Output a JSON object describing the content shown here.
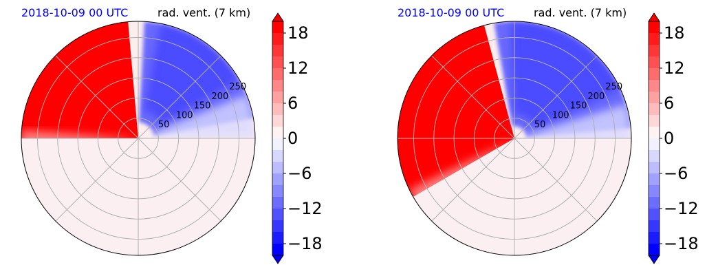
{
  "chart_data": [
    {
      "type": "heatmap",
      "projection": "polar",
      "date": "2018-10-09 00 UTC",
      "title": "rad. vent. (7 km)",
      "range_ticks": [
        50,
        100,
        150,
        200,
        250
      ],
      "range_max": 290,
      "colorbar": {
        "ticks": [
          "18",
          "12",
          "6",
          "0",
          "−6",
          "−12",
          "−18"
        ],
        "tick_values": [
          18,
          12,
          6,
          0,
          -6,
          -12,
          -18
        ],
        "vmin": -20,
        "vmax": 20,
        "extend": "both"
      },
      "field_regions": [
        {
          "sign": "positive",
          "azimuth_deg_range": [
            -90,
            -5
          ],
          "range_km": [
            0,
            290
          ],
          "value": 20
        },
        {
          "sign": "negative",
          "azimuth_deg_range": [
            3,
            80
          ],
          "range_km": [
            40,
            290
          ],
          "value": -8
        },
        {
          "sign": "near_zero",
          "azimuth_deg_range": [
            90,
            270
          ],
          "range_km": [
            0,
            290
          ],
          "value": 1
        }
      ]
    },
    {
      "type": "heatmap",
      "projection": "polar",
      "date": "2018-10-09 00 UTC",
      "title": "rad. vent. (7 km)",
      "range_ticks": [
        50,
        100,
        150,
        200,
        250
      ],
      "range_max": 290,
      "colorbar": {
        "ticks": [
          "18",
          "12",
          "6",
          "0",
          "−6",
          "−12",
          "−18"
        ],
        "tick_values": [
          18,
          12,
          6,
          0,
          -6,
          -12,
          -18
        ],
        "vmin": -20,
        "vmax": 20,
        "extend": "both"
      },
      "field_regions": [
        {
          "sign": "positive",
          "azimuth_deg_range": [
            -120,
            -15
          ],
          "range_km": [
            0,
            290
          ],
          "value": 20
        },
        {
          "sign": "negative",
          "azimuth_deg_range": [
            -10,
            85
          ],
          "range_km": [
            30,
            290
          ],
          "value": -10
        },
        {
          "sign": "near_zero",
          "azimuth_deg_range": [
            90,
            240
          ],
          "range_km": [
            0,
            290
          ],
          "value": 1
        }
      ]
    }
  ],
  "colors": {
    "positive": "#ff0000",
    "negative": "#0000ff",
    "zero": "#f7f7ff",
    "grid": "#b0b0b0"
  }
}
